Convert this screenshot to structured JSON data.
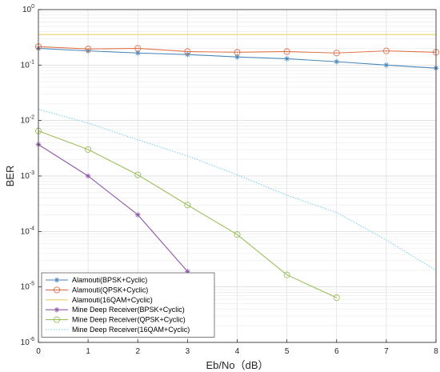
{
  "chart_data": {
    "type": "line",
    "title": "",
    "xlabel": "Eb/No（dB）",
    "ylabel": "BER",
    "x_scale": "linear",
    "y_scale": "log",
    "xlim": [
      0,
      8
    ],
    "ylim": [
      1e-06,
      1
    ],
    "grid": true,
    "legend_position": "bottom-left",
    "x_ticks": [
      "0",
      "1",
      "2",
      "3",
      "4",
      "5",
      "6",
      "7",
      "8"
    ],
    "y_ticks": [
      {
        "value": 1e-06,
        "exp": "-6"
      },
      {
        "value": 1e-05,
        "exp": "-5"
      },
      {
        "value": 0.0001,
        "exp": "-4"
      },
      {
        "value": 0.001,
        "exp": "-3"
      },
      {
        "value": 0.01,
        "exp": "-2"
      },
      {
        "value": 0.1,
        "exp": "-1"
      },
      {
        "value": 1,
        "exp": "0"
      }
    ],
    "series": [
      {
        "name": "Alamouti(BPSK+Cyclic)",
        "color": "#4a86b8",
        "marker": "asterisk",
        "line": "solid",
        "x": [
          0,
          1,
          2,
          3,
          4,
          5,
          6,
          7,
          8
        ],
        "y": [
          0.2,
          0.18,
          0.165,
          0.155,
          0.14,
          0.13,
          0.115,
          0.1,
          0.088
        ]
      },
      {
        "name": "Alamouti(QPSK+Cyclic)",
        "color": "#e0734a",
        "marker": "circle",
        "line": "solid",
        "x": [
          0,
          1,
          2,
          3,
          4,
          5,
          6,
          7,
          8
        ],
        "y": [
          0.215,
          0.195,
          0.2,
          0.175,
          0.17,
          0.175,
          0.165,
          0.18,
          0.17
        ]
      },
      {
        "name": "Alamouti(16QAM+Cyclic)",
        "color": "#e8d26a",
        "marker": "none",
        "line": "solid",
        "x": [
          0,
          1,
          2,
          3,
          4,
          5,
          6,
          7,
          8
        ],
        "y": [
          0.355,
          0.355,
          0.355,
          0.355,
          0.355,
          0.355,
          0.355,
          0.355,
          0.355
        ]
      },
      {
        "name": "Mine Deep Receiver(BPSK+Cyclic)",
        "color": "#8e5aa6",
        "marker": "asterisk",
        "line": "solid",
        "x": [
          0,
          1,
          2,
          3
        ],
        "y": [
          0.0037,
          0.001,
          0.0002,
          1.9e-05
        ]
      },
      {
        "name": "Mine Deep Receiver(QPSK+Cyclic)",
        "color": "#9cbf5c",
        "marker": "circle",
        "line": "solid",
        "x": [
          0,
          1,
          2,
          3,
          4,
          5,
          6
        ],
        "y": [
          0.0065,
          0.003,
          0.00105,
          0.0003,
          8.8e-05,
          1.65e-05,
          6.4e-06
        ]
      },
      {
        "name": "Mine Deep Receiver(16QAM+Cyclic)",
        "color": "#7fd0ea",
        "marker": "none",
        "line": "dotted",
        "x": [
          0,
          1,
          2,
          3,
          4,
          5,
          6,
          7,
          8
        ],
        "y": [
          0.016,
          0.009,
          0.0045,
          0.0023,
          0.00105,
          0.00045,
          0.00022,
          7e-05,
          2e-05
        ]
      }
    ]
  }
}
